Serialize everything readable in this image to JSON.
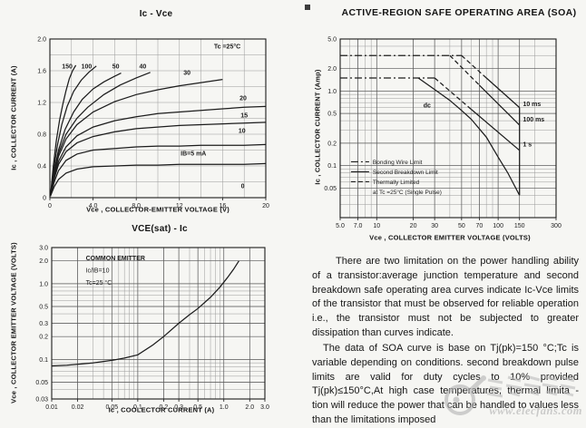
{
  "page": {
    "background": "#f6f6f3",
    "ink": "#1c1c1c"
  },
  "chart_data": [
    {
      "type": "line",
      "title": "Ic - Vce",
      "xlabel": "Vce , COLLECTOR-EMITTER VOLTAGE (V)",
      "ylabel": "Ic , COLLECTOR CURRENT (A)",
      "xscale": "linear",
      "yscale": "linear",
      "xlim": [
        0,
        20
      ],
      "ylim": [
        0,
        2
      ],
      "xgrid": 2,
      "ygrid": 0.2,
      "grid": true,
      "xticks": [
        [
          0,
          "0"
        ],
        [
          4,
          "4.0"
        ],
        [
          8,
          "8.0"
        ],
        [
          12,
          "12"
        ],
        [
          16,
          "16"
        ],
        [
          20,
          "20"
        ]
      ],
      "yticks": [
        [
          0,
          "0"
        ],
        [
          0.4,
          "0.4"
        ],
        [
          0.8,
          "0.8"
        ],
        [
          1.2,
          "1.2"
        ],
        [
          1.6,
          "1.6"
        ],
        [
          2,
          "2.0"
        ]
      ],
      "annotations": [
        {
          "text": "Tc =25°C",
          "fx": 0.76,
          "fy": 0.06,
          "bold": true
        },
        {
          "text": "0",
          "fx": 0.885,
          "fy": 0.94,
          "bold": true
        }
      ],
      "series": [
        {
          "name": "IB=150mA",
          "label": "150",
          "label_at": [
            1.6,
            1.63
          ],
          "points": [
            [
              0.05,
              0.02
            ],
            [
              0.3,
              0.38
            ],
            [
              0.6,
              0.72
            ],
            [
              0.9,
              0.98
            ],
            [
              1.2,
              1.18
            ],
            [
              1.5,
              1.35
            ],
            [
              1.8,
              1.5
            ],
            [
              2.1,
              1.6
            ],
            [
              2.4,
              1.67
            ]
          ]
        },
        {
          "name": "IB=100mA",
          "label": "100",
          "label_at": [
            3.4,
            1.63
          ],
          "points": [
            [
              0.05,
              0.02
            ],
            [
              0.35,
              0.36
            ],
            [
              0.7,
              0.66
            ],
            [
              1.1,
              0.92
            ],
            [
              1.6,
              1.15
            ],
            [
              2.2,
              1.34
            ],
            [
              2.9,
              1.48
            ],
            [
              3.6,
              1.58
            ],
            [
              4.3,
              1.66
            ]
          ]
        },
        {
          "name": "IB=50mA",
          "label": "50",
          "label_at": [
            6.1,
            1.63
          ],
          "points": [
            [
              0.05,
              0.02
            ],
            [
              0.4,
              0.34
            ],
            [
              0.8,
              0.6
            ],
            [
              1.4,
              0.86
            ],
            [
              2.2,
              1.08
            ],
            [
              3,
              1.24
            ],
            [
              4,
              1.37
            ],
            [
              5,
              1.46
            ],
            [
              6,
              1.53
            ],
            [
              6.6,
              1.57
            ]
          ]
        },
        {
          "name": "IB=40mA",
          "label": "40",
          "label_at": [
            8.6,
            1.63
          ],
          "points": [
            [
              0.05,
              0.02
            ],
            [
              0.4,
              0.32
            ],
            [
              0.8,
              0.56
            ],
            [
              1.5,
              0.8
            ],
            [
              2.5,
              1.0
            ],
            [
              3.5,
              1.14
            ],
            [
              5,
              1.3
            ],
            [
              6.5,
              1.42
            ],
            [
              8,
              1.51
            ],
            [
              9.3,
              1.58
            ]
          ]
        },
        {
          "name": "IB=30mA",
          "label": "30",
          "label_at": [
            12.7,
            1.55
          ],
          "points": [
            [
              0.05,
              0.02
            ],
            [
              0.4,
              0.3
            ],
            [
              0.8,
              0.52
            ],
            [
              1.5,
              0.74
            ],
            [
              2.5,
              0.92
            ],
            [
              4,
              1.08
            ],
            [
              6,
              1.21
            ],
            [
              8,
              1.3
            ],
            [
              10,
              1.36
            ],
            [
              12,
              1.41
            ],
            [
              14,
              1.45
            ],
            [
              16,
              1.49
            ]
          ]
        },
        {
          "name": "IB=20mA",
          "label": "20",
          "label_at": [
            17.9,
            1.23
          ],
          "points": [
            [
              0.05,
              0.02
            ],
            [
              0.4,
              0.27
            ],
            [
              0.8,
              0.46
            ],
            [
              1.5,
              0.64
            ],
            [
              2.5,
              0.78
            ],
            [
              4,
              0.89
            ],
            [
              6,
              0.97
            ],
            [
              8,
              1.02
            ],
            [
              10,
              1.06
            ],
            [
              12,
              1.08
            ],
            [
              14,
              1.1
            ],
            [
              16,
              1.12
            ],
            [
              18,
              1.14
            ],
            [
              20,
              1.15
            ]
          ]
        },
        {
          "name": "IB=15mA",
          "label": "15",
          "label_at": [
            18,
            1.01
          ],
          "points": [
            [
              0.05,
              0.02
            ],
            [
              0.4,
              0.24
            ],
            [
              0.8,
              0.42
            ],
            [
              1.5,
              0.58
            ],
            [
              2.5,
              0.69
            ],
            [
              4,
              0.77
            ],
            [
              6,
              0.83
            ],
            [
              8,
              0.87
            ],
            [
              10,
              0.89
            ],
            [
              12,
              0.91
            ],
            [
              14,
              0.92
            ],
            [
              16,
              0.93
            ],
            [
              18,
              0.94
            ],
            [
              20,
              0.95
            ]
          ]
        },
        {
          "name": "IB=10mA",
          "label": "10",
          "label_at": [
            17.8,
            0.82
          ],
          "points": [
            [
              0.05,
              0.02
            ],
            [
              0.4,
              0.2
            ],
            [
              0.8,
              0.34
            ],
            [
              1.5,
              0.47
            ],
            [
              2.5,
              0.55
            ],
            [
              4,
              0.6
            ],
            [
              6,
              0.62
            ],
            [
              8,
              0.64
            ],
            [
              10,
              0.65
            ],
            [
              12,
              0.65
            ],
            [
              14,
              0.66
            ],
            [
              16,
              0.66
            ],
            [
              18,
              0.66
            ],
            [
              20,
              0.67
            ]
          ]
        },
        {
          "name": "IB=5mA",
          "label": "IB=5 mA",
          "label_at": [
            13.3,
            0.53
          ],
          "points": [
            [
              0.05,
              0.02
            ],
            [
              0.4,
              0.14
            ],
            [
              0.8,
              0.23
            ],
            [
              1.5,
              0.31
            ],
            [
              2.5,
              0.36
            ],
            [
              4,
              0.39
            ],
            [
              6,
              0.4
            ],
            [
              8,
              0.41
            ],
            [
              10,
              0.41
            ],
            [
              12,
              0.42
            ],
            [
              14,
              0.42
            ],
            [
              16,
              0.42
            ],
            [
              18,
              0.42
            ],
            [
              20,
              0.43
            ]
          ]
        }
      ]
    },
    {
      "type": "line",
      "title": "VCE(sat) - Ic",
      "xlabel": "Ic , COOLECTOR CURRENT (A)",
      "ylabel": "Vce , COLLECTOR EMITTER VOLTAGE (VOLTS)",
      "xscale": "log",
      "yscale": "log",
      "xlim": [
        0.01,
        3
      ],
      "ylim": [
        0.03,
        3
      ],
      "grid": true,
      "xticks": [
        [
          0.01,
          "0.01"
        ],
        [
          0.02,
          "0.02"
        ],
        [
          0.05,
          "0.05"
        ],
        [
          0.1,
          "0.1"
        ],
        [
          0.2,
          "0.2"
        ],
        [
          0.3,
          "0.3"
        ],
        [
          0.5,
          "0.5"
        ],
        [
          1,
          "1.0"
        ],
        [
          2,
          "2.0"
        ],
        [
          3,
          "3.0"
        ]
      ],
      "yticks": [
        [
          3,
          "3.0"
        ],
        [
          2,
          "2.0"
        ],
        [
          1,
          "1.0"
        ],
        [
          0.5,
          "0.5"
        ],
        [
          0.3,
          "0.3"
        ],
        [
          0.2,
          "0.2"
        ],
        [
          0.1,
          "0.1"
        ],
        [
          0.05,
          "0.05"
        ],
        [
          0.03,
          "0.03"
        ]
      ],
      "annotations": [
        {
          "text": "COMMON EMITTER",
          "fx": 0.16,
          "fy": 0.085,
          "bold": true
        },
        {
          "text": "Ic/IB=10",
          "fx": 0.16,
          "fy": 0.165
        },
        {
          "text": "Tc=25 °C",
          "fx": 0.16,
          "fy": 0.245
        }
      ],
      "series": [
        {
          "name": "vce-sat-curve",
          "points": [
            [
              0.01,
              0.082
            ],
            [
              0.015,
              0.084
            ],
            [
              0.02,
              0.086
            ],
            [
              0.03,
              0.09
            ],
            [
              0.05,
              0.097
            ],
            [
              0.07,
              0.104
            ],
            [
              0.1,
              0.115
            ],
            [
              0.15,
              0.155
            ],
            [
              0.2,
              0.2
            ],
            [
              0.3,
              0.3
            ],
            [
              0.4,
              0.39
            ],
            [
              0.5,
              0.47
            ],
            [
              0.7,
              0.66
            ],
            [
              0.9,
              0.9
            ],
            [
              1.1,
              1.2
            ],
            [
              1.3,
              1.55
            ],
            [
              1.5,
              2.0
            ]
          ]
        }
      ]
    },
    {
      "type": "line",
      "title": "ACTIVE-REGION  SAFE OPERATING AREA (SOA)",
      "xlabel": "Vce , COLLECTOR EMITTER VOLTAGE (VOLTS)",
      "ylabel": "Ic , COLLECTOR CURRENT (Amp)",
      "xscale": "log",
      "yscale": "log",
      "xlim": [
        5,
        300
      ],
      "ylim": [
        0.02,
        5
      ],
      "grid": true,
      "xticks": [
        [
          5,
          "5.0"
        ],
        [
          7,
          "7.0"
        ],
        [
          10,
          "10"
        ],
        [
          20,
          "20"
        ],
        [
          30,
          "30"
        ],
        [
          50,
          "50"
        ],
        [
          70,
          "70"
        ],
        [
          100,
          "100"
        ],
        [
          150,
          "150"
        ],
        [
          300,
          "300"
        ]
      ],
      "yticks": [
        [
          5,
          "5.0"
        ],
        [
          2,
          "2.0"
        ],
        [
          1,
          "1.0"
        ],
        [
          0.5,
          "0.5"
        ],
        [
          0.2,
          "0.2"
        ],
        [
          0.1,
          "0.1"
        ],
        [
          0.05,
          "0.05"
        ]
      ],
      "legend": {
        "pos": [
          0.05,
          0.7
        ],
        "items": [
          {
            "style": "dashdot",
            "label": "Bonding Wire Limit"
          },
          {
            "style": "solid",
            "label": "Second Breakdown Limit"
          },
          {
            "style": "dashed",
            "label": "Thermally Limited"
          },
          {
            "style": "none",
            "label": "at Tc =25°C (Single Pulse)"
          }
        ]
      },
      "series": [
        {
          "name": "bonding-wire-limit-3A",
          "dash": "dashdot",
          "points": [
            [
              5,
              3
            ],
            [
              50,
              3
            ]
          ]
        },
        {
          "name": "bonding-wire-limit-1.5A",
          "dash": "dashdot",
          "points": [
            [
              5,
              1.5
            ],
            [
              30,
              1.5
            ]
          ]
        },
        {
          "name": "10ms-thermal",
          "dash": "dashed",
          "points": [
            [
              50,
              3
            ],
            [
              80,
              1.5
            ]
          ]
        },
        {
          "name": "10ms-second-breakdown",
          "label": "10 ms",
          "label_at": [
            160,
            0.63
          ],
          "anchor": "start",
          "points": [
            [
              80,
              1.5
            ],
            [
              150,
              0.6
            ]
          ]
        },
        {
          "name": "100ms-thermal",
          "dash": "dashed",
          "points": [
            [
              40,
              3
            ],
            [
              70,
              1.2
            ]
          ]
        },
        {
          "name": "100ms-second-breakdown",
          "label": "100 ms",
          "label_at": [
            160,
            0.39
          ],
          "anchor": "start",
          "points": [
            [
              70,
              1.2
            ],
            [
              150,
              0.35
            ]
          ]
        },
        {
          "name": "1s-thermal",
          "dash": "dashed",
          "points": [
            [
              30,
              1.5
            ],
            [
              60,
              0.57
            ]
          ]
        },
        {
          "name": "1s-second-breakdown",
          "label": "1 s",
          "label_at": [
            160,
            0.18
          ],
          "anchor": "start",
          "points": [
            [
              60,
              0.57
            ],
            [
              150,
              0.16
            ]
          ]
        },
        {
          "name": "dc-curve",
          "label": "dc",
          "label_at": [
            26,
            0.6
          ],
          "anchor": "middle",
          "points": [
            [
              22,
              1.5
            ],
            [
              30,
              1.05
            ],
            [
              40,
              0.75
            ],
            [
              50,
              0.55
            ],
            [
              60,
              0.42
            ],
            [
              80,
              0.24
            ],
            [
              100,
              0.13
            ],
            [
              120,
              0.08
            ],
            [
              150,
              0.04
            ]
          ]
        },
        {
          "name": "vceo-limit-150V",
          "points": [
            [
              150,
              0.6
            ],
            [
              150,
              0.04
            ]
          ]
        }
      ]
    }
  ],
  "text_block": {
    "para1": "There are two limitation on the power handling ability of a transistor:average junction temperature and second breakdown safe operating area curves indicate Ic-Vce limits of the transistor that must be observed for reliable operation i.e., the transistor must not be subjected to greater dissipation than curves indicate.",
    "para2": "The data of SOA curve is base on Tj(pk)=150 °C;Tc is variable depending on conditions. second breakdown pulse limits are valid for duty cycles to 10% provided Tj(pk)≤150°C,At high case temperatures, thermal limita - tion will reduce the power that can be handled to values less than the limitations imposed"
  },
  "watermark": {
    "site": "www.elecfans.com"
  }
}
